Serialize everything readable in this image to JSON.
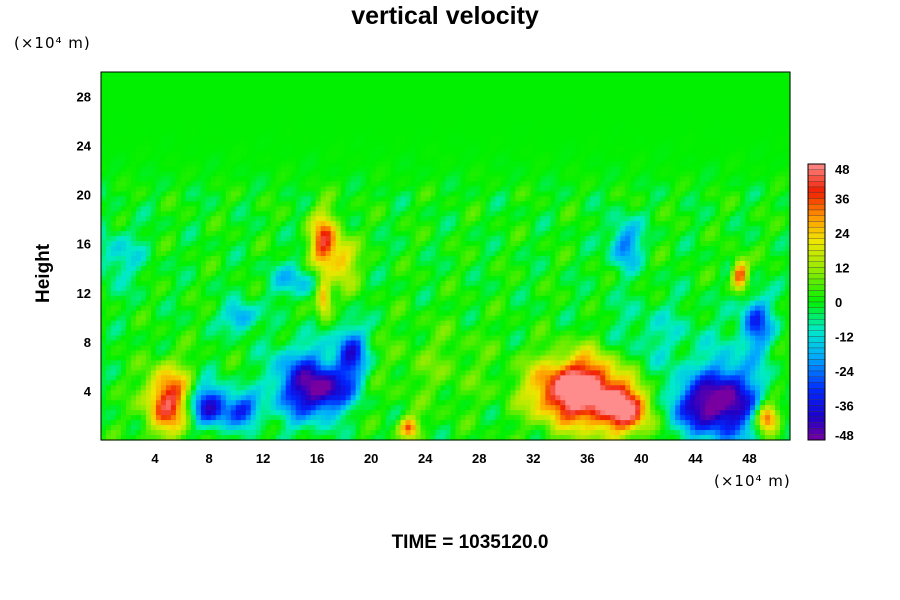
{
  "chart_data": {
    "type": "heatmap",
    "title": "vertical velocity",
    "xlabel": "",
    "ylabel": "Height",
    "x_unit": "(×10⁴ m)",
    "y_unit": "(×10⁴ m)",
    "xlim": [
      0,
      51
    ],
    "ylim": [
      0,
      30
    ],
    "x_ticks": [
      4,
      8,
      12,
      16,
      20,
      24,
      28,
      32,
      36,
      40,
      44,
      48
    ],
    "y_ticks": [
      4,
      8,
      12,
      16,
      20,
      24,
      28
    ],
    "colorbar": {
      "ticks": [
        48,
        36,
        24,
        12,
        0,
        -12,
        -24,
        -36,
        -48
      ],
      "range": [
        -48,
        48
      ]
    },
    "background_value": 0,
    "features": [
      {
        "x": 5.0,
        "y": 3.2,
        "sx": 1.2,
        "sy": 1.9,
        "value": 42
      },
      {
        "x": 8.0,
        "y": 2.8,
        "sx": 1.0,
        "sy": 1.2,
        "value": -40
      },
      {
        "x": 10.5,
        "y": 2.4,
        "sx": 0.9,
        "sy": 0.9,
        "value": -30
      },
      {
        "x": 15.0,
        "y": 4.5,
        "sx": 1.6,
        "sy": 2.0,
        "value": -38
      },
      {
        "x": 18.5,
        "y": 7.0,
        "sx": 0.8,
        "sy": 1.6,
        "value": -34
      },
      {
        "x": 17.0,
        "y": 4.0,
        "sx": 1.2,
        "sy": 1.2,
        "value": -28
      },
      {
        "x": 16.5,
        "y": 16.0,
        "sx": 0.7,
        "sy": 1.8,
        "value": 38
      },
      {
        "x": 18.0,
        "y": 14.5,
        "sx": 0.7,
        "sy": 1.5,
        "value": 22
      },
      {
        "x": 16.5,
        "y": 11.5,
        "sx": 0.4,
        "sy": 1.0,
        "value": 32
      },
      {
        "x": 14.5,
        "y": 13.0,
        "sx": 1.4,
        "sy": 1.0,
        "value": -16
      },
      {
        "x": 10.3,
        "y": 10.0,
        "sx": 0.8,
        "sy": 0.8,
        "value": -24
      },
      {
        "x": 22.8,
        "y": 1.0,
        "sx": 0.5,
        "sy": 0.6,
        "value": 34
      },
      {
        "x": 34.0,
        "y": 4.0,
        "sx": 1.8,
        "sy": 1.8,
        "value": 40
      },
      {
        "x": 36.5,
        "y": 4.0,
        "sx": 1.6,
        "sy": 2.2,
        "value": 38
      },
      {
        "x": 39.0,
        "y": 2.5,
        "sx": 1.3,
        "sy": 1.4,
        "value": 42
      },
      {
        "x": 44.0,
        "y": 2.8,
        "sx": 1.6,
        "sy": 1.6,
        "value": -30
      },
      {
        "x": 46.5,
        "y": 3.2,
        "sx": 1.6,
        "sy": 2.2,
        "value": -42
      },
      {
        "x": 49.3,
        "y": 1.8,
        "sx": 0.6,
        "sy": 0.8,
        "value": 40
      },
      {
        "x": 47.3,
        "y": 13.5,
        "sx": 0.4,
        "sy": 0.9,
        "value": 38
      },
      {
        "x": 48.5,
        "y": 9.5,
        "sx": 0.8,
        "sy": 1.6,
        "value": -30
      },
      {
        "x": 38.8,
        "y": 16.0,
        "sx": 0.8,
        "sy": 1.4,
        "value": -24
      },
      {
        "x": 1.2,
        "y": 15.0,
        "sx": 1.4,
        "sy": 1.6,
        "value": -12
      },
      {
        "x": 25.0,
        "y": 6.0,
        "sx": 3.0,
        "sy": 2.5,
        "value": 6
      },
      {
        "x": 41.0,
        "y": 8.5,
        "sx": 3.0,
        "sy": 2.0,
        "value": -8
      }
    ]
  },
  "footer": {
    "time_label": "TIME = 1035120.0"
  }
}
